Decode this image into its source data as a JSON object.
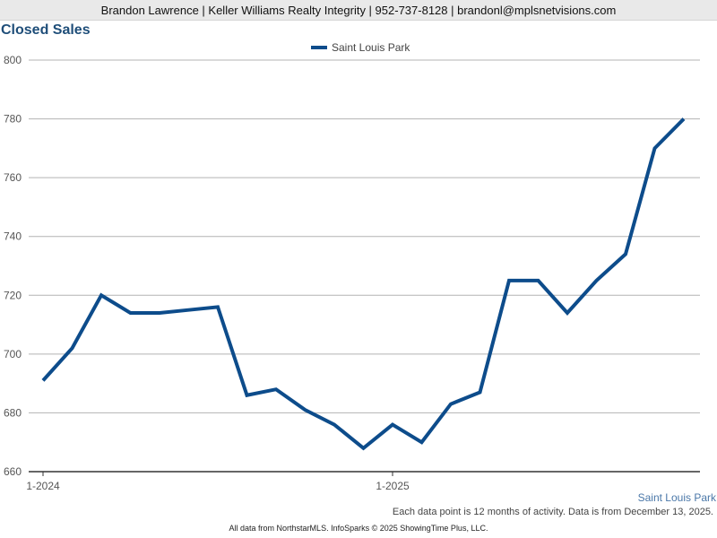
{
  "header": {
    "contact_line": "Brandon Lawrence | Keller Williams Realty Integrity | 952-737-8128 | brandonl@mplsnetvisions.com"
  },
  "colors": {
    "series_line": "#0d4c8b",
    "gridline": "#b3b3b3",
    "title": "#1f4e79"
  },
  "chart_data": {
    "type": "line",
    "title": "Closed Sales",
    "xlabel": "",
    "ylabel": "",
    "x_tick_labels": [
      "1-2024",
      "1-2025"
    ],
    "y_ticks": [
      660,
      680,
      700,
      720,
      740,
      760,
      780,
      800
    ],
    "ylim": [
      660,
      800
    ],
    "grid": "horizontal",
    "legend_position": "top-center",
    "x": [
      "1-2024",
      "2-2024",
      "3-2024",
      "4-2024",
      "5-2024",
      "6-2024",
      "7-2024",
      "8-2024",
      "9-2024",
      "10-2024",
      "11-2024",
      "12-2024",
      "1-2025",
      "2-2025",
      "3-2025",
      "4-2025",
      "5-2025",
      "6-2025",
      "7-2025",
      "8-2025",
      "9-2025",
      "10-2025",
      "11-2025"
    ],
    "series": [
      {
        "name": "Saint Louis Park",
        "values": [
          691,
          702,
          720,
          714,
          714,
          715,
          716,
          686,
          688,
          681,
          676,
          668,
          676,
          670,
          683,
          687,
          725,
          725,
          714,
          725,
          734,
          770,
          780
        ]
      }
    ]
  },
  "series_label": "Saint Louis Park",
  "note": "Each data point is 12 months of activity. Data is from December 13, 2025.",
  "footer": "All data from NorthstarMLS. InfoSparks © 2025 ShowingTime Plus, LLC."
}
